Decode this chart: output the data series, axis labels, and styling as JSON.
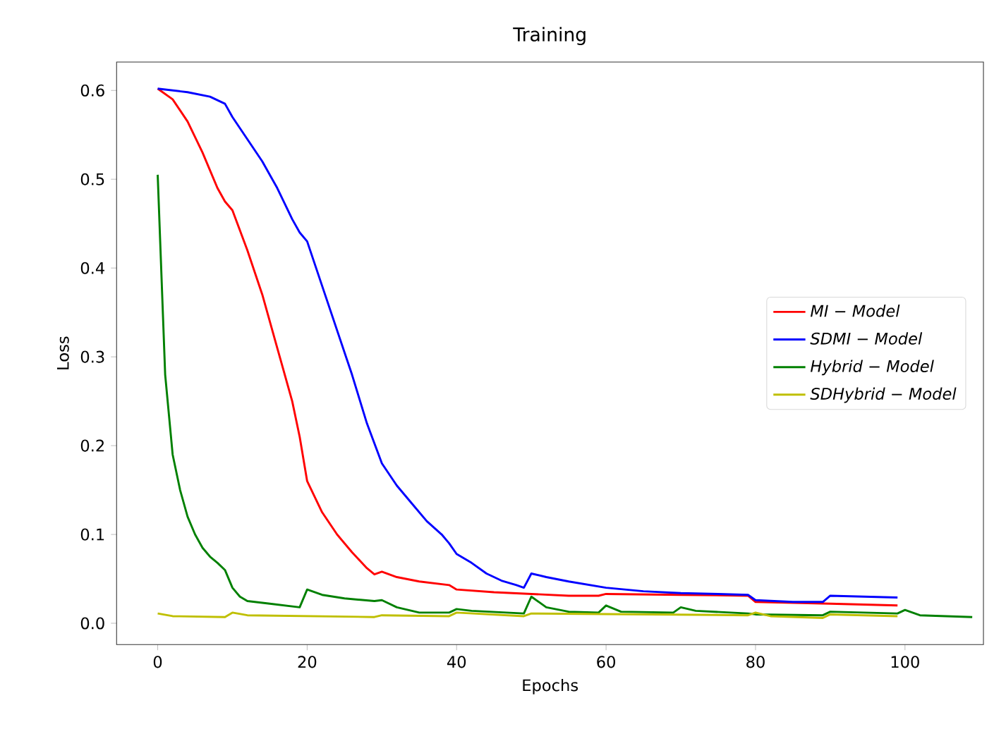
{
  "chart_data": {
    "type": "line",
    "title": "Training",
    "xlabel": "Epochs",
    "ylabel": "Loss",
    "xlim": [
      -5.5,
      110.5
    ],
    "ylim": [
      -0.024,
      0.632
    ],
    "xticks": [
      0,
      20,
      40,
      60,
      80,
      100
    ],
    "yticks": [
      {
        "value": 0,
        "label": "0.0"
      },
      0.1,
      0.2,
      0.3,
      0.4,
      0.5,
      0.6
    ],
    "legend": "right",
    "grid": false,
    "series": [
      {
        "name": "MI − Model",
        "color": "#ff0000",
        "x": [
          0,
          2,
          4,
          6,
          8,
          9,
          10,
          12,
          14,
          16,
          18,
          19,
          20,
          22,
          24,
          26,
          28,
          29,
          30,
          32,
          35,
          39,
          40,
          45,
          50,
          55,
          59,
          60,
          70,
          79,
          80,
          90,
          99
        ],
        "values": [
          0.602,
          0.59,
          0.565,
          0.53,
          0.49,
          0.475,
          0.465,
          0.42,
          0.37,
          0.31,
          0.25,
          0.21,
          0.16,
          0.125,
          0.1,
          0.08,
          0.062,
          0.055,
          0.058,
          0.052,
          0.047,
          0.043,
          0.038,
          0.035,
          0.033,
          0.031,
          0.031,
          0.033,
          0.032,
          0.031,
          0.024,
          0.022,
          0.02
        ]
      },
      {
        "name": "SDMI − Model",
        "color": "#0000ff",
        "x": [
          0,
          4,
          7,
          9,
          10,
          12,
          14,
          16,
          18,
          19,
          20,
          22,
          24,
          26,
          28,
          30,
          32,
          34,
          36,
          38,
          39,
          40,
          42,
          44,
          46,
          48,
          49,
          50,
          52,
          55,
          60,
          65,
          70,
          75,
          79,
          80,
          85,
          89,
          90,
          99
        ],
        "values": [
          0.602,
          0.598,
          0.593,
          0.585,
          0.57,
          0.545,
          0.52,
          0.49,
          0.455,
          0.44,
          0.43,
          0.38,
          0.33,
          0.28,
          0.225,
          0.18,
          0.155,
          0.135,
          0.115,
          0.1,
          0.09,
          0.078,
          0.068,
          0.056,
          0.048,
          0.043,
          0.04,
          0.056,
          0.052,
          0.047,
          0.04,
          0.036,
          0.034,
          0.033,
          0.032,
          0.026,
          0.024,
          0.024,
          0.031,
          0.029
        ]
      },
      {
        "name": "Hybrid − Model",
        "color": "#008000",
        "x": [
          0,
          1,
          2,
          3,
          4,
          5,
          6,
          7,
          8,
          9,
          10,
          11,
          12,
          15,
          19,
          20,
          22,
          25,
          29,
          30,
          32,
          35,
          39,
          40,
          42,
          49,
          50,
          52,
          55,
          59,
          60,
          62,
          69,
          70,
          72,
          79,
          80,
          89,
          90,
          99,
          100,
          102,
          109
        ],
        "values": [
          0.505,
          0.28,
          0.19,
          0.15,
          0.12,
          0.1,
          0.085,
          0.075,
          0.068,
          0.06,
          0.04,
          0.03,
          0.025,
          0.022,
          0.018,
          0.038,
          0.032,
          0.028,
          0.025,
          0.026,
          0.018,
          0.012,
          0.012,
          0.016,
          0.014,
          0.011,
          0.03,
          0.018,
          0.013,
          0.012,
          0.02,
          0.013,
          0.012,
          0.018,
          0.014,
          0.011,
          0.01,
          0.009,
          0.013,
          0.011,
          0.015,
          0.009,
          0.007
        ]
      },
      {
        "name": "SDHybrid − Model",
        "color": "#bfbf00",
        "x": [
          0,
          2,
          9,
          10,
          12,
          29,
          30,
          39,
          40,
          49,
          50,
          79,
          80,
          82,
          89,
          90,
          99
        ],
        "values": [
          0.011,
          0.008,
          0.007,
          0.012,
          0.009,
          0.007,
          0.009,
          0.008,
          0.012,
          0.008,
          0.011,
          0.009,
          0.012,
          0.008,
          0.006,
          0.01,
          0.008
        ]
      }
    ]
  }
}
